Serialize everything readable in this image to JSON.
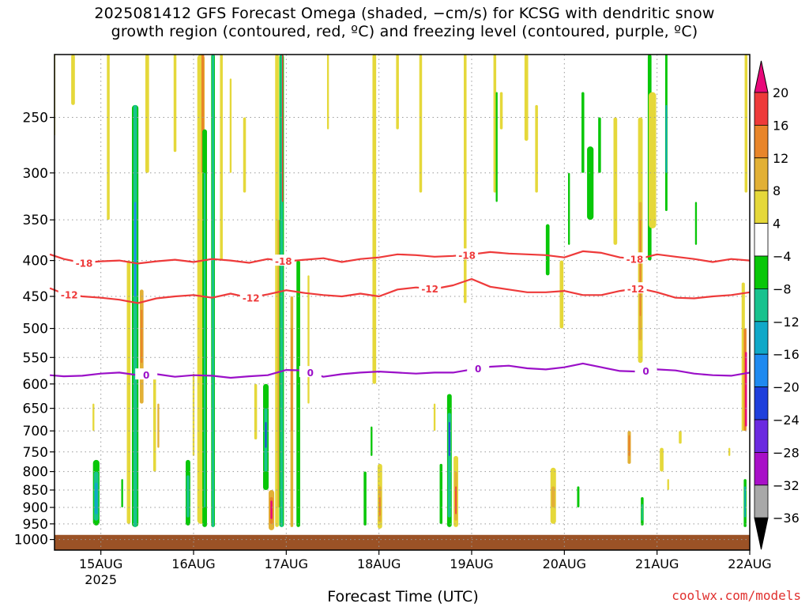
{
  "title_line1": "2025081412 GFS Forecast Omega (shaded, −cm/s) for KCSG with dendritic snow",
  "title_line2": "growth region (contoured, red, ºC) and freezing level (contoured, purple, ºC)",
  "xaxis_title": "Forecast Time (UTC)",
  "credit": "coolwx.com/models",
  "colors": {
    "ground": "#9b5226",
    "isotherm_red": "#ee3a3a",
    "freezing_purple": "#9b10c8",
    "grid": "#9a9a9a"
  },
  "chart_data": {
    "type": "heatmap",
    "title": "2025081412 GFS Forecast Omega (shaded, −cm/s) for KCSG with dendritic snow growth region (contoured, red, ºC) and freezing level (contoured, purple, ºC)",
    "xlabel": "Forecast Time (UTC)",
    "ylabel": "",
    "y_scale": "pressure (reversed, log-like)",
    "ylim": [
      1000,
      200
    ],
    "x_ticks": [
      "15AUG",
      "16AUG",
      "17AUG",
      "18AUG",
      "19AUG",
      "20AUG",
      "21AUG",
      "22AUG"
    ],
    "x_tick_sub": "2025",
    "y_ticks": [
      250,
      300,
      350,
      400,
      450,
      500,
      550,
      600,
      650,
      700,
      750,
      800,
      850,
      900,
      950,
      1000
    ],
    "grid": true,
    "colorbar": {
      "placement": "right",
      "labels": [
        "20",
        "16",
        "12",
        "8",
        "4",
        "−4",
        "−8",
        "−12",
        "−16",
        "−20",
        "−24",
        "−28",
        "−32",
        "−36"
      ],
      "bins": [
        {
          "min": 20,
          "color": "#e8097a"
        },
        {
          "min": 16,
          "max": 20,
          "color": "#ee3a3a"
        },
        {
          "min": 12,
          "max": 16,
          "color": "#e8852a"
        },
        {
          "min": 8,
          "max": 12,
          "color": "#e2b035"
        },
        {
          "min": 4,
          "max": 8,
          "color": "#e5d83a"
        },
        {
          "min": -4,
          "max": 4,
          "color": "#ffffff"
        },
        {
          "min": -8,
          "max": -4,
          "color": "#08c708"
        },
        {
          "min": -12,
          "max": -8,
          "color": "#18c28e"
        },
        {
          "min": -16,
          "max": -12,
          "color": "#10a8c8"
        },
        {
          "min": -20,
          "max": -16,
          "color": "#1f8af0"
        },
        {
          "min": -24,
          "max": -20,
          "color": "#1e3fdc"
        },
        {
          "min": -28,
          "max": -24,
          "color": "#6b2ae0"
        },
        {
          "min": -32,
          "max": -28,
          "color": "#a810c8"
        },
        {
          "min": -36,
          "max": -32,
          "color": "#a8a8a8"
        },
        {
          "max": -36,
          "color": "#000000"
        }
      ]
    },
    "omega_cells": [
      {
        "day": 14.48,
        "d": 0.03,
        "p1": 200,
        "p2": 265,
        "v": 5
      },
      {
        "day": 14.7,
        "d": 0.04,
        "p1": 200,
        "p2": 240,
        "v": 5
      },
      {
        "day": 14.95,
        "d": 0.07,
        "p1": 770,
        "p2": 955,
        "v": -7
      },
      {
        "day": 14.95,
        "d": 0.05,
        "p1": 800,
        "p2": 940,
        "v": -10
      },
      {
        "day": 14.95,
        "d": 0.03,
        "p1": 830,
        "p2": 920,
        "v": -14
      },
      {
        "day": 14.92,
        "d": 0.02,
        "p1": 640,
        "p2": 700,
        "v": 5
      },
      {
        "day": 15.08,
        "d": 0.03,
        "p1": 200,
        "p2": 350,
        "v": 5
      },
      {
        "day": 15.23,
        "d": 0.02,
        "p1": 820,
        "p2": 900,
        "v": -6
      },
      {
        "day": 15.37,
        "d": 0.07,
        "p1": 240,
        "p2": 960,
        "v": -6
      },
      {
        "day": 15.37,
        "d": 0.04,
        "p1": 240,
        "p2": 960,
        "v": -11
      },
      {
        "day": 15.37,
        "d": 0.02,
        "p1": 330,
        "p2": 450,
        "v": -18
      },
      {
        "day": 15.3,
        "d": 0.04,
        "p1": 400,
        "p2": 950,
        "v": 5
      },
      {
        "day": 15.44,
        "d": 0.04,
        "p1": 440,
        "p2": 640,
        "v": 9
      },
      {
        "day": 15.44,
        "d": 0.02,
        "p1": 470,
        "p2": 560,
        "v": 13
      },
      {
        "day": 15.5,
        "d": 0.04,
        "p1": 200,
        "p2": 300,
        "v": 5
      },
      {
        "day": 15.58,
        "d": 0.03,
        "p1": 580,
        "p2": 800,
        "v": 5
      },
      {
        "day": 15.62,
        "d": 0.02,
        "p1": 640,
        "p2": 740,
        "v": 9
      },
      {
        "day": 15.94,
        "d": 0.05,
        "p1": 770,
        "p2": 955,
        "v": -7
      },
      {
        "day": 15.94,
        "d": 0.03,
        "p1": 810,
        "p2": 930,
        "v": -12
      },
      {
        "day": 15.8,
        "d": 0.03,
        "p1": 200,
        "p2": 280,
        "v": 5
      },
      {
        "day": 16.0,
        "d": 0.02,
        "p1": 580,
        "p2": 760,
        "v": 5
      },
      {
        "day": 16.08,
        "d": 0.08,
        "p1": 200,
        "p2": 950,
        "v": 5
      },
      {
        "day": 16.1,
        "d": 0.03,
        "p1": 200,
        "p2": 300,
        "v": 12
      },
      {
        "day": 16.12,
        "d": 0.05,
        "p1": 260,
        "p2": 960,
        "v": -6
      },
      {
        "day": 16.12,
        "d": 0.02,
        "p1": 300,
        "p2": 900,
        "v": -11
      },
      {
        "day": 16.21,
        "d": 0.04,
        "p1": 200,
        "p2": 960,
        "v": -7
      },
      {
        "day": 16.21,
        "d": 0.025,
        "p1": 200,
        "p2": 960,
        "v": -12
      },
      {
        "day": 16.3,
        "d": 0.03,
        "p1": 200,
        "p2": 400,
        "v": 5
      },
      {
        "day": 16.4,
        "d": 0.02,
        "p1": 220,
        "p2": 300,
        "v": 5
      },
      {
        "day": 16.55,
        "d": 0.03,
        "p1": 250,
        "p2": 320,
        "v": 5
      },
      {
        "day": 16.67,
        "d": 0.03,
        "p1": 600,
        "p2": 720,
        "v": 5
      },
      {
        "day": 16.78,
        "d": 0.06,
        "p1": 600,
        "p2": 850,
        "v": -7
      },
      {
        "day": 16.78,
        "d": 0.035,
        "p1": 650,
        "p2": 800,
        "v": -12
      },
      {
        "day": 16.78,
        "d": 0.015,
        "p1": 680,
        "p2": 740,
        "v": -22
      },
      {
        "day": 16.84,
        "d": 0.06,
        "p1": 850,
        "p2": 970,
        "v": 8
      },
      {
        "day": 16.84,
        "d": 0.035,
        "p1": 870,
        "p2": 950,
        "v": 14
      },
      {
        "day": 16.84,
        "d": 0.02,
        "p1": 880,
        "p2": 935,
        "v": 22
      },
      {
        "day": 16.9,
        "d": 0.04,
        "p1": 200,
        "p2": 960,
        "v": 5
      },
      {
        "day": 16.92,
        "d": 0.03,
        "p1": 350,
        "p2": 900,
        "v": 9
      },
      {
        "day": 16.95,
        "d": 0.05,
        "p1": 200,
        "p2": 960,
        "v": -6
      },
      {
        "day": 16.95,
        "d": 0.03,
        "p1": 200,
        "p2": 960,
        "v": -11
      },
      {
        "day": 16.96,
        "d": 0.012,
        "p1": 200,
        "p2": 330,
        "v": 18
      },
      {
        "day": 17.06,
        "d": 0.03,
        "p1": 450,
        "p2": 960,
        "v": 9
      },
      {
        "day": 17.06,
        "d": 0.015,
        "p1": 500,
        "p2": 700,
        "v": 13
      },
      {
        "day": 17.13,
        "d": 0.04,
        "p1": 400,
        "p2": 960,
        "v": -6
      },
      {
        "day": 17.24,
        "d": 0.02,
        "p1": 420,
        "p2": 640,
        "v": 5
      },
      {
        "day": 17.45,
        "d": 0.02,
        "p1": 200,
        "p2": 260,
        "v": 5
      },
      {
        "day": 17.85,
        "d": 0.03,
        "p1": 800,
        "p2": 955,
        "v": -7
      },
      {
        "day": 17.92,
        "d": 0.02,
        "p1": 690,
        "p2": 760,
        "v": -6
      },
      {
        "day": 17.95,
        "d": 0.04,
        "p1": 200,
        "p2": 600,
        "v": 5
      },
      {
        "day": 18.01,
        "d": 0.05,
        "p1": 780,
        "p2": 965,
        "v": 5
      },
      {
        "day": 18.01,
        "d": 0.03,
        "p1": 840,
        "p2": 945,
        "v": 9
      },
      {
        "day": 18.01,
        "d": 0.015,
        "p1": 870,
        "p2": 925,
        "v": 13
      },
      {
        "day": 18.2,
        "d": 0.03,
        "p1": 200,
        "p2": 260,
        "v": 5
      },
      {
        "day": 18.45,
        "d": 0.03,
        "p1": 200,
        "p2": 320,
        "v": 5
      },
      {
        "day": 18.6,
        "d": 0.02,
        "p1": 640,
        "p2": 700,
        "v": 5
      },
      {
        "day": 18.67,
        "d": 0.03,
        "p1": 780,
        "p2": 950,
        "v": -7
      },
      {
        "day": 18.76,
        "d": 0.05,
        "p1": 620,
        "p2": 960,
        "v": -7
      },
      {
        "day": 18.76,
        "d": 0.035,
        "p1": 660,
        "p2": 930,
        "v": -12
      },
      {
        "day": 18.76,
        "d": 0.015,
        "p1": 680,
        "p2": 760,
        "v": -24
      },
      {
        "day": 18.83,
        "d": 0.05,
        "p1": 760,
        "p2": 960,
        "v": 6
      },
      {
        "day": 18.83,
        "d": 0.03,
        "p1": 800,
        "p2": 940,
        "v": 11
      },
      {
        "day": 18.83,
        "d": 0.014,
        "p1": 840,
        "p2": 920,
        "v": 17
      },
      {
        "day": 18.93,
        "d": 0.03,
        "p1": 200,
        "p2": 460,
        "v": 5
      },
      {
        "day": 19.25,
        "d": 0.03,
        "p1": 200,
        "p2": 320,
        "v": 5
      },
      {
        "day": 19.27,
        "d": 0.02,
        "p1": 230,
        "p2": 330,
        "v": -6
      },
      {
        "day": 19.32,
        "d": 0.03,
        "p1": 230,
        "p2": 260,
        "v": 5
      },
      {
        "day": 19.59,
        "d": 0.04,
        "p1": 200,
        "p2": 270,
        "v": 5
      },
      {
        "day": 19.7,
        "d": 0.03,
        "p1": 240,
        "p2": 320,
        "v": 5
      },
      {
        "day": 19.82,
        "d": 0.04,
        "p1": 355,
        "p2": 420,
        "v": -6
      },
      {
        "day": 19.97,
        "d": 0.04,
        "p1": 400,
        "p2": 500,
        "v": 5
      },
      {
        "day": 20.05,
        "d": 0.02,
        "p1": 300,
        "p2": 380,
        "v": -6
      },
      {
        "day": 19.88,
        "d": 0.06,
        "p1": 790,
        "p2": 950,
        "v": 5
      },
      {
        "day": 19.88,
        "d": 0.04,
        "p1": 840,
        "p2": 900,
        "v": 9
      },
      {
        "day": 20.15,
        "d": 0.025,
        "p1": 840,
        "p2": 900,
        "v": -6
      },
      {
        "day": 20.2,
        "d": 0.03,
        "p1": 230,
        "p2": 300,
        "v": -6
      },
      {
        "day": 20.28,
        "d": 0.07,
        "p1": 275,
        "p2": 350,
        "v": -6
      },
      {
        "day": 20.38,
        "d": 0.03,
        "p1": 250,
        "p2": 300,
        "v": -6
      },
      {
        "day": 20.55,
        "d": 0.04,
        "p1": 250,
        "p2": 380,
        "v": 5
      },
      {
        "day": 20.7,
        "d": 0.035,
        "p1": 700,
        "p2": 780,
        "v": 9
      },
      {
        "day": 20.7,
        "d": 0.02,
        "p1": 710,
        "p2": 760,
        "v": 13
      },
      {
        "day": 20.82,
        "d": 0.05,
        "p1": 250,
        "p2": 560,
        "v": 5
      },
      {
        "day": 20.82,
        "d": 0.03,
        "p1": 330,
        "p2": 520,
        "v": 9
      },
      {
        "day": 20.82,
        "d": 0.015,
        "p1": 350,
        "p2": 480,
        "v": 13
      },
      {
        "day": 20.84,
        "d": 0.03,
        "p1": 870,
        "p2": 955,
        "v": -7
      },
      {
        "day": 20.84,
        "d": 0.015,
        "p1": 890,
        "p2": 940,
        "v": -12
      },
      {
        "day": 20.92,
        "d": 0.04,
        "p1": 200,
        "p2": 400,
        "v": -6
      },
      {
        "day": 20.95,
        "d": 0.08,
        "p1": 230,
        "p2": 360,
        "v": 5
      },
      {
        "day": 21.1,
        "d": 0.025,
        "p1": 200,
        "p2": 340,
        "v": -8
      },
      {
        "day": 21.1,
        "d": 0.015,
        "p1": 240,
        "p2": 300,
        "v": -16
      },
      {
        "day": 21.05,
        "d": 0.04,
        "p1": 740,
        "p2": 800,
        "v": 5
      },
      {
        "day": 21.12,
        "d": 0.02,
        "p1": 820,
        "p2": 850,
        "v": 5
      },
      {
        "day": 21.25,
        "d": 0.03,
        "p1": 700,
        "p2": 730,
        "v": 5
      },
      {
        "day": 21.42,
        "d": 0.02,
        "p1": 330,
        "p2": 380,
        "v": -6
      },
      {
        "day": 21.78,
        "d": 0.02,
        "p1": 740,
        "p2": 760,
        "v": 5
      },
      {
        "day": 21.93,
        "d": 0.035,
        "p1": 430,
        "p2": 700,
        "v": 5
      },
      {
        "day": 21.95,
        "d": 0.03,
        "p1": 500,
        "p2": 700,
        "v": 14
      },
      {
        "day": 21.96,
        "d": 0.02,
        "p1": 540,
        "p2": 690,
        "v": 22
      },
      {
        "day": 21.95,
        "d": 0.03,
        "p1": 820,
        "p2": 960,
        "v": -8
      },
      {
        "day": 21.95,
        "d": 0.015,
        "p1": 840,
        "p2": 930,
        "v": -14
      },
      {
        "day": 21.96,
        "d": 0.03,
        "p1": 200,
        "p2": 320,
        "v": 5
      }
    ],
    "contours": [
      {
        "name": "-18",
        "color": "#ee3a3a",
        "label": "-18",
        "x": [
          14.45,
          14.6,
          14.8,
          15.0,
          15.2,
          15.4,
          15.6,
          15.8,
          16.0,
          16.2,
          16.4,
          16.6,
          16.8,
          17.0,
          17.2,
          17.4,
          17.6,
          17.8,
          18.0,
          18.2,
          18.4,
          18.6,
          18.8,
          19.0,
          19.2,
          19.4,
          19.6,
          19.8,
          20.0,
          20.2,
          20.4,
          20.6,
          20.8,
          21.0,
          21.2,
          21.4,
          21.6,
          21.8,
          22.0
        ],
        "p": [
          392,
          398,
          403,
          401,
          400,
          404,
          401,
          399,
          402,
          398,
          400,
          403,
          398,
          401,
          399,
          397,
          402,
          398,
          396,
          392,
          393,
          395,
          394,
          392,
          389,
          391,
          392,
          393,
          396,
          388,
          390,
          396,
          398,
          392,
          395,
          398,
          402,
          398,
          400
        ],
        "label_at": [
          14.82,
          16.97,
          18.95,
          20.76
        ]
      },
      {
        "name": "-12",
        "color": "#ee3a3a",
        "label": "-12",
        "x": [
          14.45,
          14.6,
          14.8,
          15.0,
          15.2,
          15.4,
          15.6,
          15.8,
          16.0,
          16.2,
          16.4,
          16.6,
          16.8,
          17.0,
          17.2,
          17.4,
          17.6,
          17.8,
          18.0,
          18.2,
          18.4,
          18.6,
          18.8,
          19.0,
          19.2,
          19.4,
          19.6,
          19.8,
          20.0,
          20.2,
          20.4,
          20.6,
          20.8,
          21.0,
          21.2,
          21.4,
          21.6,
          21.8,
          22.0
        ],
        "p": [
          438,
          446,
          450,
          452,
          455,
          460,
          453,
          450,
          448,
          452,
          446,
          452,
          447,
          441,
          445,
          448,
          450,
          446,
          450,
          440,
          437,
          439,
          434,
          425,
          436,
          440,
          444,
          444,
          442,
          448,
          448,
          442,
          438,
          444,
          452,
          453,
          450,
          448,
          444
        ],
        "label_at": [
          14.66,
          16.62,
          18.55,
          20.77
        ]
      },
      {
        "name": "0",
        "color": "#9b10c8",
        "label": "0",
        "x": [
          14.45,
          14.6,
          14.8,
          15.0,
          15.2,
          15.4,
          15.6,
          15.8,
          16.0,
          16.2,
          16.4,
          16.6,
          16.8,
          17.0,
          17.2,
          17.4,
          17.6,
          17.8,
          18.0,
          18.2,
          18.4,
          18.6,
          18.8,
          19.0,
          19.2,
          19.4,
          19.6,
          19.8,
          20.0,
          20.2,
          20.4,
          20.6,
          20.8,
          21.0,
          21.2,
          21.4,
          21.6,
          21.8,
          22.0
        ],
        "p": [
          583,
          585,
          584,
          580,
          578,
          583,
          581,
          586,
          583,
          584,
          588,
          585,
          583,
          573,
          574,
          586,
          581,
          578,
          576,
          578,
          580,
          578,
          578,
          572,
          567,
          565,
          570,
          572,
          568,
          561,
          568,
          575,
          576,
          572,
          574,
          580,
          583,
          584,
          578
        ],
        "label_at": [
          15.49,
          17.26,
          19.07,
          20.88
        ]
      }
    ],
    "ground": {
      "p_top": 985
    }
  }
}
